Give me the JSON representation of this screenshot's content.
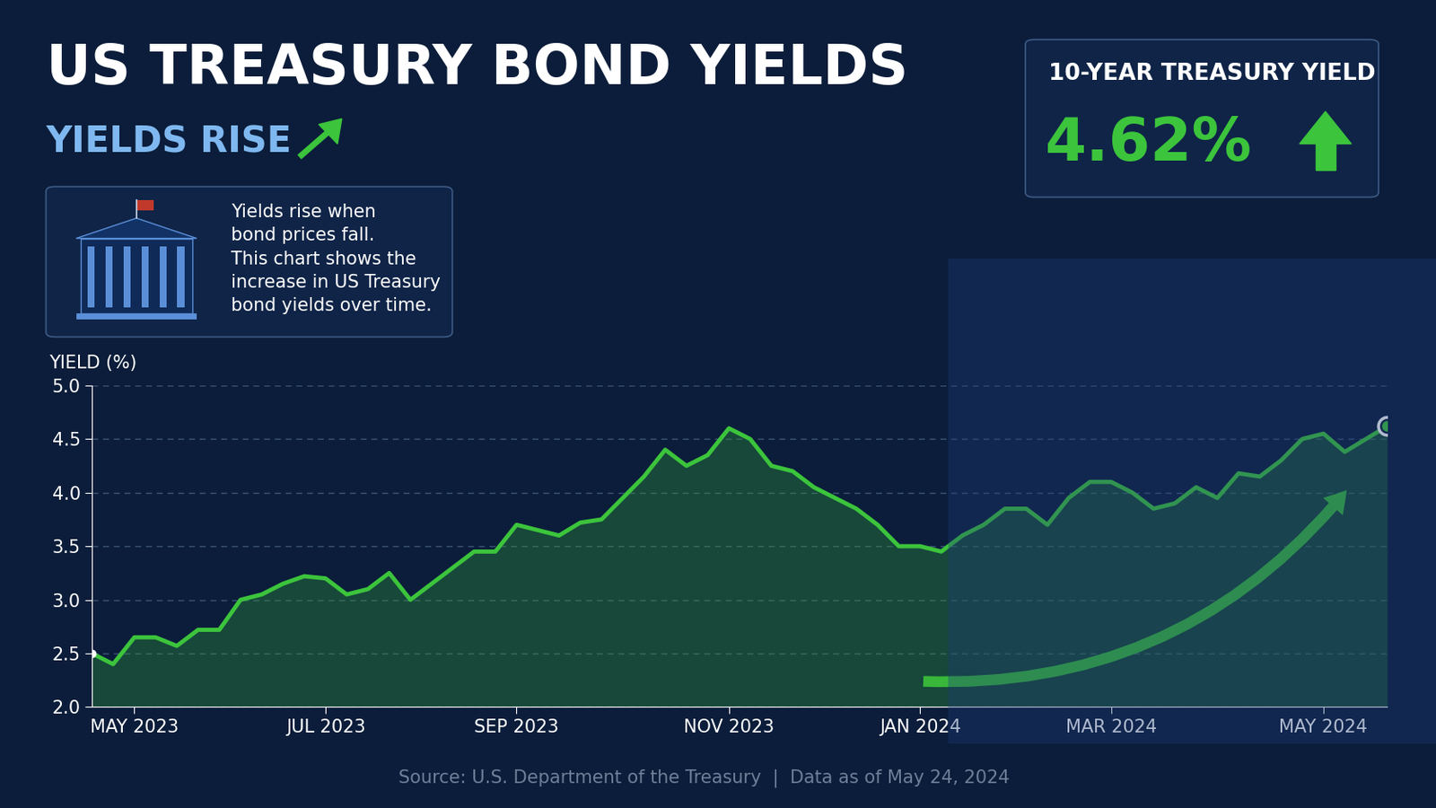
{
  "chart_data": {
    "type": "line",
    "title": "US TREASURY BOND YIELDS",
    "subtitle": "YIELDS RISE",
    "note": "Yields rise when\nbond prices fall.\nThis chart shows the\nincrease in US Treasury\nbond yields over time.",
    "callout": {
      "label": "10-YEAR TREASURY YIELD",
      "value_text": "4.62%"
    },
    "y_label": "YIELD (%)",
    "source": "Source: U.S. Department of the Treasury  |  Data as of May 24, 2024",
    "categories": [
      null,
      null,
      "MAY 2023",
      null,
      null,
      null,
      null,
      null,
      null,
      null,
      null,
      "JUL 2023",
      null,
      null,
      null,
      null,
      null,
      null,
      null,
      null,
      "SEP 2023",
      null,
      null,
      null,
      null,
      null,
      null,
      null,
      null,
      null,
      "NOV 2023",
      null,
      null,
      null,
      null,
      null,
      null,
      null,
      null,
      "JAN 2024",
      null,
      null,
      null,
      null,
      null,
      null,
      null,
      null,
      "MAR 2024",
      null,
      null,
      null,
      null,
      null,
      null,
      null,
      null,
      null,
      "MAY 2024",
      null,
      null,
      null
    ],
    "series": [
      {
        "name": "10-Year Treasury Yield",
        "color": "#3cc43c",
        "values": [
          2.5,
          2.4,
          2.65,
          2.65,
          2.57,
          2.72,
          2.72,
          3.0,
          3.05,
          3.15,
          3.22,
          3.2,
          3.05,
          3.1,
          3.25,
          3.0,
          3.15,
          3.3,
          3.45,
          3.45,
          3.7,
          3.65,
          3.6,
          3.72,
          3.75,
          3.95,
          4.15,
          4.4,
          4.25,
          4.35,
          4.6,
          4.5,
          4.25,
          4.2,
          4.05,
          3.95,
          3.85,
          3.7,
          3.5,
          3.5,
          3.45,
          3.6,
          3.7,
          3.85,
          3.85,
          3.7,
          3.95,
          4.1,
          4.1,
          4.0,
          3.85,
          3.9,
          4.05,
          3.95,
          4.18,
          4.15,
          4.3,
          4.5,
          4.55,
          4.38,
          4.5,
          4.62
        ]
      }
    ],
    "ylim": [
      2.0,
      5.0
    ],
    "yticks": [
      2.0,
      2.5,
      3.0,
      3.5,
      4.0,
      4.5,
      5.0
    ],
    "grid": true
  }
}
